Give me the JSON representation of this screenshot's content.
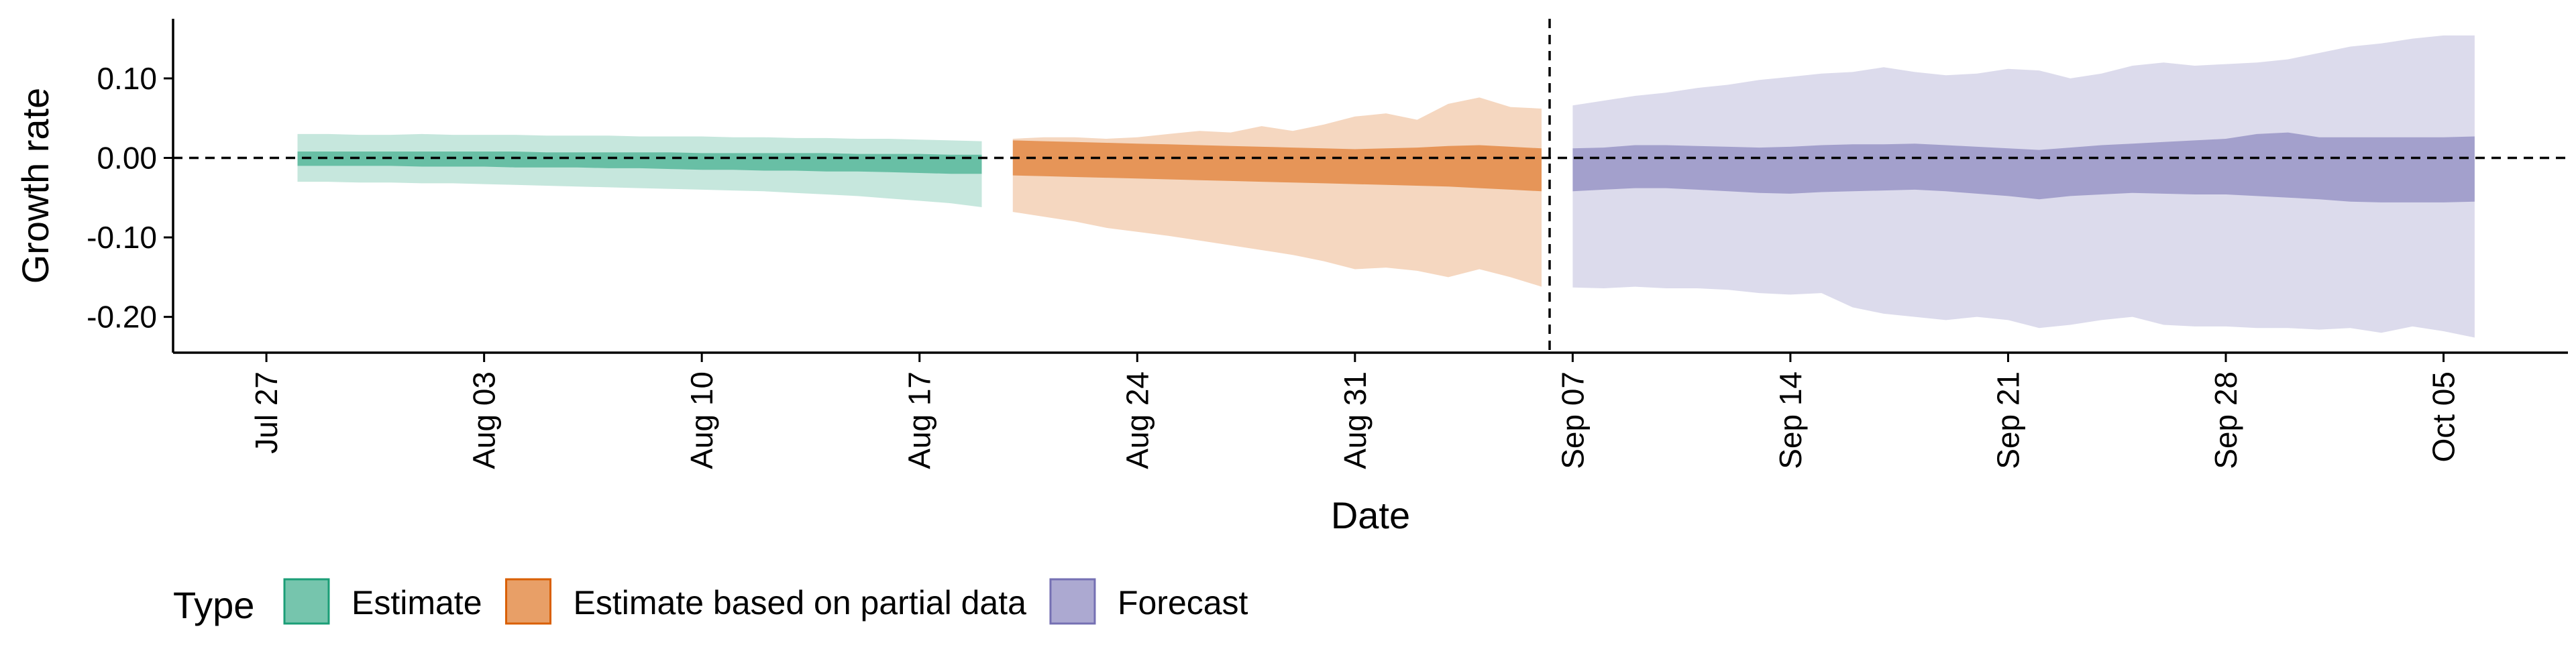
{
  "chart_data": {
    "type": "area",
    "title": "",
    "xlabel": "Date",
    "ylabel": "Growth rate",
    "ylim": [
      -0.245,
      0.175
    ],
    "yticks": [
      0.1,
      0.0,
      -0.1,
      -0.2
    ],
    "ytick_labels": [
      "0.10",
      "0.00",
      "-0.10",
      "-0.20"
    ],
    "xlim": [
      "2021-07-24",
      "2021-10-09"
    ],
    "xticks": [
      "2021-07-27",
      "2021-08-03",
      "2021-08-10",
      "2021-08-17",
      "2021-08-24",
      "2021-08-31",
      "2021-09-07",
      "2021-09-14",
      "2021-09-21",
      "2021-09-28",
      "2021-10-05"
    ],
    "xtick_labels": [
      "Jul 27",
      "Aug 03",
      "Aug 10",
      "Aug 17",
      "Aug 24",
      "Aug 31",
      "Sep 07",
      "Sep 14",
      "Sep 21",
      "Sep 28",
      "Oct 05"
    ],
    "xtick_rotation": "vertical",
    "hline": 0.0,
    "vline": "2021-09-06",
    "grid": false,
    "legend": {
      "title": "Type",
      "position": "bottom-left",
      "entries": [
        "Estimate",
        "Estimate based on partial data",
        "Forecast"
      ]
    },
    "series": [
      {
        "name": "Estimate",
        "color": "#1b9e77",
        "x": [
          "2021-07-28",
          "2021-07-29",
          "2021-07-30",
          "2021-07-31",
          "2021-08-01",
          "2021-08-02",
          "2021-08-03",
          "2021-08-04",
          "2021-08-05",
          "2021-08-06",
          "2021-08-07",
          "2021-08-08",
          "2021-08-09",
          "2021-08-10",
          "2021-08-11",
          "2021-08-12",
          "2021-08-13",
          "2021-08-14",
          "2021-08-15",
          "2021-08-16",
          "2021-08-17",
          "2021-08-18",
          "2021-08-19"
        ],
        "inner_lower": [
          -0.01,
          -0.01,
          -0.01,
          -0.01,
          -0.011,
          -0.011,
          -0.011,
          -0.012,
          -0.012,
          -0.012,
          -0.013,
          -0.013,
          -0.014,
          -0.015,
          -0.015,
          -0.016,
          -0.016,
          -0.017,
          -0.017,
          -0.018,
          -0.019,
          -0.02,
          -0.02
        ],
        "inner_upper": [
          0.008,
          0.008,
          0.008,
          0.008,
          0.008,
          0.008,
          0.008,
          0.008,
          0.007,
          0.007,
          0.007,
          0.007,
          0.007,
          0.006,
          0.006,
          0.006,
          0.006,
          0.006,
          0.005,
          0.005,
          0.005,
          0.004,
          0.004
        ],
        "outer_lower": [
          -0.03,
          -0.03,
          -0.031,
          -0.031,
          -0.032,
          -0.032,
          -0.033,
          -0.034,
          -0.035,
          -0.036,
          -0.037,
          -0.038,
          -0.039,
          -0.04,
          -0.041,
          -0.042,
          -0.044,
          -0.046,
          -0.048,
          -0.051,
          -0.054,
          -0.057,
          -0.062
        ],
        "outer_upper": [
          0.03,
          0.03,
          0.029,
          0.029,
          0.03,
          0.029,
          0.029,
          0.029,
          0.028,
          0.028,
          0.028,
          0.027,
          0.027,
          0.027,
          0.026,
          0.026,
          0.025,
          0.025,
          0.024,
          0.024,
          0.023,
          0.022,
          0.021
        ]
      },
      {
        "name": "Estimate based on partial data",
        "color": "#d95f02",
        "x": [
          "2021-08-20",
          "2021-08-21",
          "2021-08-22",
          "2021-08-23",
          "2021-08-24",
          "2021-08-25",
          "2021-08-26",
          "2021-08-27",
          "2021-08-28",
          "2021-08-29",
          "2021-08-30",
          "2021-08-31",
          "2021-09-01",
          "2021-09-02",
          "2021-09-03",
          "2021-09-04",
          "2021-09-05",
          "2021-09-06"
        ],
        "inner_lower": [
          -0.022,
          -0.023,
          -0.024,
          -0.025,
          -0.026,
          -0.027,
          -0.028,
          -0.029,
          -0.03,
          -0.031,
          -0.032,
          -0.033,
          -0.034,
          -0.035,
          -0.036,
          -0.038,
          -0.04,
          -0.042
        ],
        "inner_upper": [
          0.022,
          0.021,
          0.02,
          0.019,
          0.018,
          0.017,
          0.016,
          0.015,
          0.014,
          0.013,
          0.012,
          0.011,
          0.012,
          0.013,
          0.015,
          0.016,
          0.014,
          0.012
        ],
        "outer_lower": [
          -0.068,
          -0.074,
          -0.08,
          -0.088,
          -0.093,
          -0.098,
          -0.104,
          -0.11,
          -0.116,
          -0.122,
          -0.13,
          -0.14,
          -0.138,
          -0.142,
          -0.15,
          -0.14,
          -0.15,
          -0.162
        ],
        "outer_upper": [
          0.024,
          0.026,
          0.026,
          0.024,
          0.026,
          0.03,
          0.034,
          0.032,
          0.04,
          0.034,
          0.042,
          0.052,
          0.056,
          0.048,
          0.068,
          0.076,
          0.064,
          0.062
        ]
      },
      {
        "name": "Forecast",
        "color": "#7570b3",
        "x": [
          "2021-09-07",
          "2021-09-08",
          "2021-09-09",
          "2021-09-10",
          "2021-09-11",
          "2021-09-12",
          "2021-09-13",
          "2021-09-14",
          "2021-09-15",
          "2021-09-16",
          "2021-09-17",
          "2021-09-18",
          "2021-09-19",
          "2021-09-20",
          "2021-09-21",
          "2021-09-22",
          "2021-09-23",
          "2021-09-24",
          "2021-09-25",
          "2021-09-26",
          "2021-09-27",
          "2021-09-28",
          "2021-09-29",
          "2021-09-30",
          "2021-10-01",
          "2021-10-02",
          "2021-10-03",
          "2021-10-04",
          "2021-10-05",
          "2021-10-06"
        ],
        "inner_lower": [
          -0.042,
          -0.04,
          -0.038,
          -0.038,
          -0.04,
          -0.042,
          -0.044,
          -0.045,
          -0.043,
          -0.042,
          -0.041,
          -0.04,
          -0.042,
          -0.045,
          -0.048,
          -0.052,
          -0.048,
          -0.046,
          -0.044,
          -0.045,
          -0.046,
          -0.046,
          -0.048,
          -0.05,
          -0.052,
          -0.055,
          -0.056,
          -0.056,
          -0.056,
          -0.055
        ],
        "inner_upper": [
          0.012,
          0.013,
          0.016,
          0.016,
          0.015,
          0.014,
          0.013,
          0.014,
          0.016,
          0.017,
          0.017,
          0.018,
          0.016,
          0.014,
          0.012,
          0.01,
          0.013,
          0.016,
          0.018,
          0.02,
          0.022,
          0.024,
          0.03,
          0.032,
          0.026,
          0.026,
          0.026,
          0.026,
          0.026,
          0.027
        ],
        "outer_lower": [
          -0.163,
          -0.164,
          -0.162,
          -0.164,
          -0.164,
          -0.166,
          -0.17,
          -0.172,
          -0.17,
          -0.188,
          -0.196,
          -0.2,
          -0.204,
          -0.2,
          -0.204,
          -0.214,
          -0.21,
          -0.204,
          -0.2,
          -0.21,
          -0.212,
          -0.212,
          -0.214,
          -0.214,
          -0.216,
          -0.214,
          -0.22,
          -0.212,
          -0.218,
          -0.226
        ],
        "outer_upper": [
          0.066,
          0.072,
          0.078,
          0.082,
          0.088,
          0.092,
          0.098,
          0.102,
          0.106,
          0.108,
          0.114,
          0.108,
          0.104,
          0.106,
          0.112,
          0.11,
          0.1,
          0.106,
          0.116,
          0.12,
          0.116,
          0.118,
          0.12,
          0.124,
          0.132,
          0.14,
          0.144,
          0.15,
          0.154,
          0.154
        ]
      }
    ]
  }
}
